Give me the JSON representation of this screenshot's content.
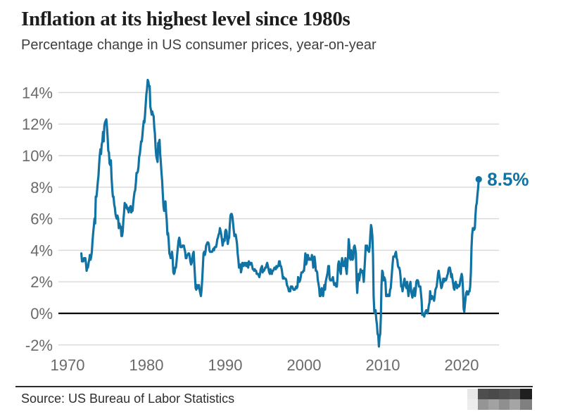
{
  "chart_data": {
    "type": "line",
    "title": "Inflation at its highest level since 1980s",
    "subtitle": "Percentage change in US consumer prices, year-on-year",
    "xlabel": "",
    "ylabel": "",
    "x_ticks": [
      1970,
      1980,
      1990,
      2000,
      2010,
      2020
    ],
    "y_ticks": [
      14,
      12,
      10,
      8,
      6,
      4,
      2,
      0,
      -2
    ],
    "y_tick_suffix": "%",
    "ylim": [
      -2,
      14.8
    ],
    "xlim": [
      1968.8,
      2024.7
    ],
    "grid": "horizontal-only",
    "legend": "none",
    "line_color": "#1173a3",
    "grid_color": "#d8d8d8",
    "zero_line_color": "#000000",
    "annotation": {
      "label": "8.5%",
      "value": 8.5,
      "x": "2022-03"
    },
    "series": [
      {
        "name": "US consumer prices year-on-year % change",
        "frequency": "monthly",
        "start_year": 1971,
        "start_month": 10,
        "end": "2022-03",
        "values": [
          3.8,
          3.3,
          3.3,
          3.3,
          3.5,
          3.5,
          3.5,
          3.2,
          2.7,
          2.9,
          2.9,
          3.2,
          3.4,
          3.7,
          3.4,
          3.6,
          3.9,
          4.6,
          5.1,
          5.5,
          6.0,
          5.7,
          7.4,
          7.4,
          7.8,
          8.3,
          8.7,
          9.4,
          10.0,
          10.4,
          10.1,
          10.7,
          10.9,
          11.5,
          10.9,
          11.9,
          12.1,
          12.2,
          12.3,
          11.8,
          11.2,
          10.3,
          10.2,
          9.5,
          9.4,
          9.7,
          8.6,
          7.9,
          7.4,
          7.4,
          6.9,
          6.7,
          6.3,
          6.1,
          6.0,
          6.2,
          6.0,
          5.4,
          5.7,
          5.5,
          5.5,
          4.9,
          4.9,
          5.2,
          5.9,
          6.4,
          7.0,
          6.7,
          6.9,
          6.8,
          6.6,
          6.6,
          6.4,
          6.7,
          6.7,
          6.8,
          6.4,
          6.6,
          6.5,
          7.0,
          7.4,
          7.7,
          7.8,
          8.3,
          8.9,
          8.9,
          9.0,
          9.3,
          9.9,
          10.1,
          10.5,
          10.9,
          10.9,
          11.3,
          11.8,
          12.2,
          12.1,
          12.6,
          13.3,
          13.9,
          14.2,
          14.8,
          14.7,
          14.4,
          14.4,
          13.1,
          12.9,
          12.6,
          12.8,
          12.6,
          12.5,
          11.8,
          11.4,
          10.5,
          10.0,
          9.8,
          9.6,
          10.8,
          10.8,
          11.0,
          10.1,
          9.6,
          8.9,
          8.4,
          7.6,
          6.8,
          6.5,
          6.7,
          7.1,
          6.4,
          5.9,
          5.0,
          5.1,
          4.6,
          3.8,
          3.7,
          3.5,
          3.6,
          3.9,
          3.5,
          2.6,
          2.5,
          2.6,
          2.9,
          2.9,
          3.3,
          3.8,
          4.2,
          4.6,
          4.8,
          4.6,
          4.2,
          4.2,
          4.2,
          4.3,
          4.3,
          4.3,
          4.1,
          3.9,
          3.5,
          3.5,
          3.7,
          3.7,
          3.8,
          3.8,
          3.6,
          3.3,
          3.1,
          3.2,
          3.5,
          3.8,
          3.9,
          3.1,
          2.3,
          1.6,
          1.5,
          1.8,
          1.6,
          1.6,
          1.8,
          1.5,
          1.3,
          1.1,
          1.5,
          2.1,
          3.0,
          3.8,
          3.9,
          3.7,
          3.9,
          4.3,
          4.4,
          4.5,
          4.5,
          4.4,
          4.0,
          3.9,
          3.9,
          3.9,
          3.9,
          4.0,
          4.1,
          4.0,
          4.2,
          4.2,
          4.2,
          4.4,
          4.7,
          4.8,
          5.0,
          5.1,
          5.4,
          5.2,
          5.0,
          4.7,
          4.3,
          4.5,
          4.7,
          4.6,
          5.2,
          5.3,
          5.2,
          4.7,
          4.4,
          4.7,
          4.8,
          5.6,
          6.2,
          6.3,
          6.3,
          6.1,
          5.7,
          5.3,
          4.9,
          4.9,
          5.0,
          4.7,
          4.4,
          3.8,
          3.4,
          2.9,
          3.0,
          3.1,
          2.6,
          2.8,
          3.2,
          3.2,
          3.0,
          3.1,
          3.2,
          3.1,
          3.0,
          3.2,
          3.0,
          2.9,
          3.3,
          3.2,
          3.1,
          3.2,
          3.2,
          3.0,
          2.8,
          2.8,
          2.7,
          2.8,
          2.7,
          2.7,
          2.5,
          2.5,
          2.5,
          2.4,
          2.3,
          2.5,
          2.8,
          2.9,
          3.0,
          2.6,
          2.7,
          2.7,
          2.8,
          2.9,
          2.9,
          3.1,
          3.2,
          3.0,
          2.8,
          2.6,
          2.5,
          2.8,
          2.6,
          2.5,
          2.7,
          2.7,
          2.8,
          2.9,
          2.9,
          2.8,
          3.0,
          2.9,
          3.0,
          3.0,
          3.3,
          3.3,
          3.0,
          3.0,
          2.8,
          2.5,
          2.2,
          2.3,
          2.2,
          2.2,
          2.2,
          2.1,
          1.8,
          1.7,
          1.6,
          1.4,
          1.4,
          1.4,
          1.7,
          1.7,
          1.7,
          1.6,
          1.5,
          1.5,
          1.5,
          1.6,
          1.7,
          1.6,
          1.7,
          2.3,
          2.1,
          2.0,
          2.1,
          2.3,
          2.6,
          2.6,
          2.6,
          2.7,
          2.7,
          3.2,
          3.8,
          3.1,
          3.2,
          3.7,
          3.7,
          3.4,
          3.5,
          3.4,
          3.4,
          3.4,
          3.7,
          3.5,
          2.9,
          3.3,
          3.6,
          3.2,
          2.7,
          2.7,
          2.6,
          2.1,
          1.9,
          1.6,
          1.1,
          1.1,
          1.5,
          1.6,
          1.2,
          1.1,
          1.5,
          1.8,
          1.5,
          2.0,
          2.2,
          2.4,
          2.6,
          3.0,
          3.0,
          2.2,
          2.1,
          2.1,
          2.1,
          2.2,
          2.3,
          2.0,
          1.8,
          1.9,
          1.9,
          1.7,
          1.7,
          2.3,
          3.1,
          3.3,
          3.0,
          2.7,
          2.5,
          3.2,
          3.5,
          3.3,
          3.0,
          3.0,
          3.1,
          3.5,
          2.8,
          2.5,
          3.2,
          3.6,
          4.7,
          4.3,
          3.5,
          3.4,
          4.0,
          3.6,
          3.4,
          3.5,
          4.2,
          4.3,
          4.1,
          3.8,
          2.1,
          1.3,
          2.0,
          2.5,
          2.1,
          2.4,
          2.8,
          2.6,
          2.7,
          2.7,
          2.4,
          2.0,
          2.8,
          3.5,
          4.3,
          4.1,
          4.3,
          4.0,
          4.0,
          3.9,
          4.2,
          5.0,
          5.6,
          5.4,
          4.9,
          3.7,
          1.1,
          0.1,
          0.0,
          0.2,
          -0.4,
          -0.7,
          -1.3,
          -1.4,
          -2.1,
          -1.5,
          -1.3,
          -0.2,
          1.8,
          2.7,
          2.6,
          2.1,
          2.3,
          2.2,
          2.0,
          1.1,
          1.2,
          1.1,
          1.1,
          1.2,
          1.1,
          1.5,
          1.6,
          2.1,
          2.7,
          3.2,
          3.6,
          3.6,
          3.6,
          3.8,
          3.9,
          3.5,
          3.4,
          3.0,
          2.9,
          2.9,
          2.7,
          2.3,
          1.7,
          1.7,
          1.4,
          1.7,
          2.0,
          2.2,
          1.8,
          1.7,
          1.6,
          2.0,
          1.5,
          1.1,
          1.4,
          1.8,
          2.0,
          1.5,
          1.2,
          1.0,
          1.2,
          1.5,
          1.6,
          1.1,
          1.5,
          2.0,
          2.1,
          2.1,
          2.0,
          1.7,
          1.7,
          1.7,
          1.3,
          0.8,
          -0.1,
          0.0,
          -0.1,
          -0.2,
          0.0,
          0.1,
          0.2,
          0.2,
          0.0,
          0.2,
          0.5,
          0.7,
          1.4,
          1.0,
          0.9,
          1.1,
          1.0,
          1.0,
          0.8,
          1.1,
          1.5,
          1.6,
          1.7,
          2.1,
          2.5,
          2.7,
          2.4,
          2.2,
          1.9,
          1.6,
          1.7,
          1.9,
          2.2,
          2.0,
          2.2,
          2.1,
          2.1,
          2.2,
          2.4,
          2.5,
          2.8,
          2.9,
          2.9,
          2.7,
          2.3,
          2.5,
          2.2,
          1.9,
          1.6,
          1.5,
          1.9,
          2.0,
          1.8,
          1.6,
          1.8,
          1.7,
          1.7,
          1.8,
          2.1,
          2.3,
          2.5,
          2.3,
          1.5,
          0.3,
          0.1,
          0.6,
          1.0,
          1.3,
          1.4,
          1.2,
          1.2,
          1.4,
          1.4,
          1.7,
          2.6,
          4.2,
          5.0,
          5.4,
          5.4,
          5.3,
          5.4,
          6.2,
          6.8,
          7.0,
          7.5,
          7.9,
          8.5
        ]
      }
    ]
  },
  "footer": {
    "source": "Source: US Bureau of Labor Statistics",
    "logo_blocks": [
      [
        "#e7e7e7",
        "#4e4e4e",
        "#4a4a4a",
        "#505050",
        "#565656",
        "#1f1f1f"
      ],
      [
        "#ededed",
        "#959595",
        "#a2a2a2",
        "#8f8f8f",
        "#a5a5a5",
        "#808080"
      ]
    ]
  }
}
